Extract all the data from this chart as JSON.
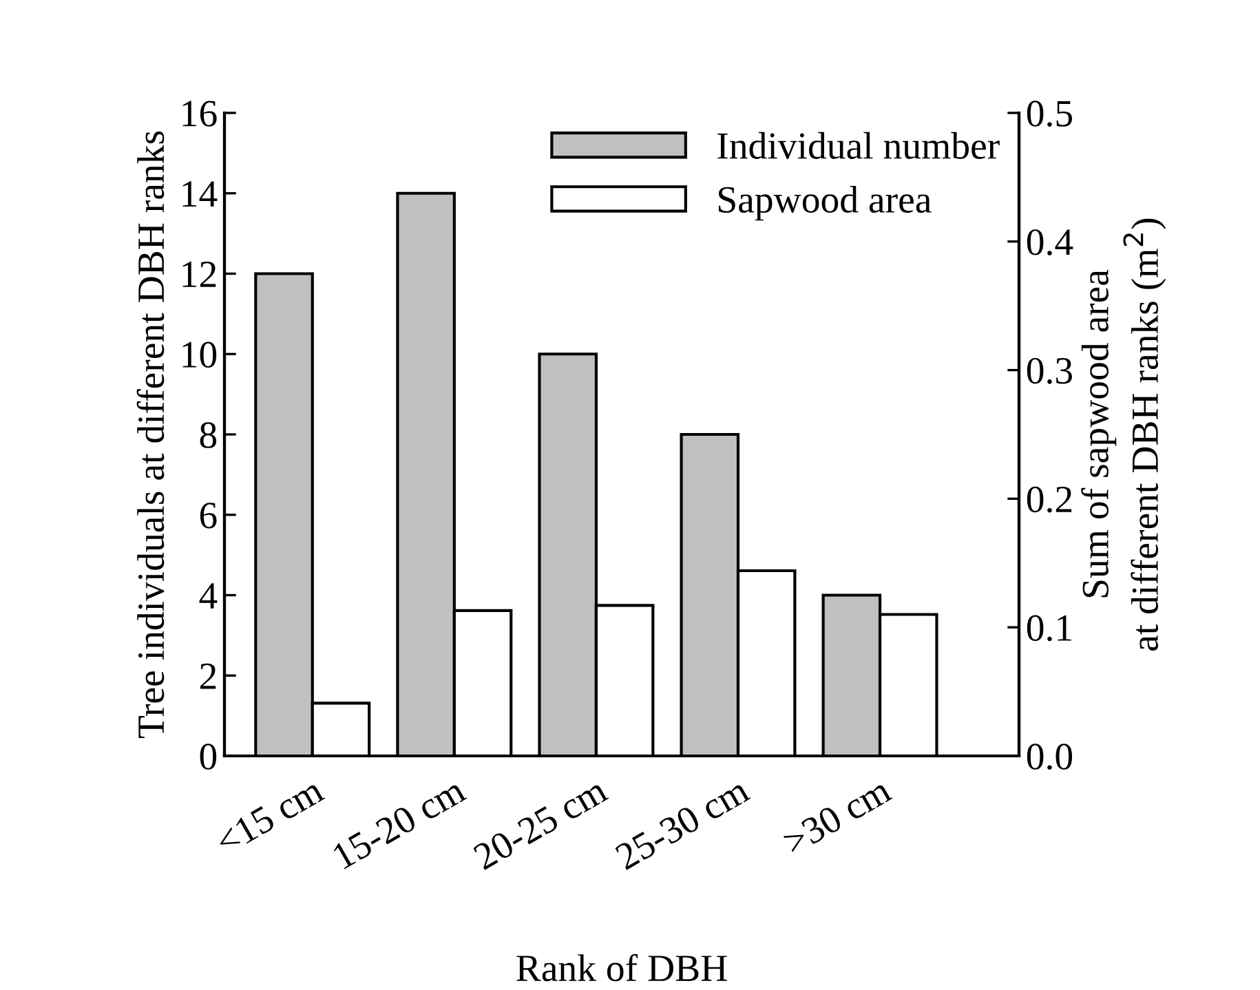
{
  "chart_data": {
    "type": "bar",
    "xlabel": "Rank of DBH",
    "ylabel": "Tree individuals at different DBH ranks",
    "y2label": "Sum of sapwood area\nat different DBH ranks (m$^{2}$)",
    "categories": [
      "<15 cm",
      "15-20 cm",
      "20-25 cm",
      "25-30 cm",
      ">30 cm"
    ],
    "series": [
      {
        "name": "Individual number",
        "color": "#c0c0c0",
        "values": [
          12,
          14,
          10,
          8,
          4
        ]
      },
      {
        "name": "Sapwood area",
        "color": "#ffffff",
        "axis": "y2",
        "values": [
          0.041,
          0.113,
          0.117,
          0.144,
          0.11
        ]
      }
    ],
    "ylim": [
      0,
      16
    ],
    "yticks": [
      0,
      2,
      4,
      6,
      8,
      10,
      12,
      14,
      16
    ],
    "y2lim": [
      0,
      0.5
    ],
    "y2ticks": [
      {
        "value": 0,
        "label": "0.0"
      },
      0.1,
      0.2,
      0.3,
      0.4,
      0.5
    ],
    "legend": "top right",
    "grid": false
  }
}
